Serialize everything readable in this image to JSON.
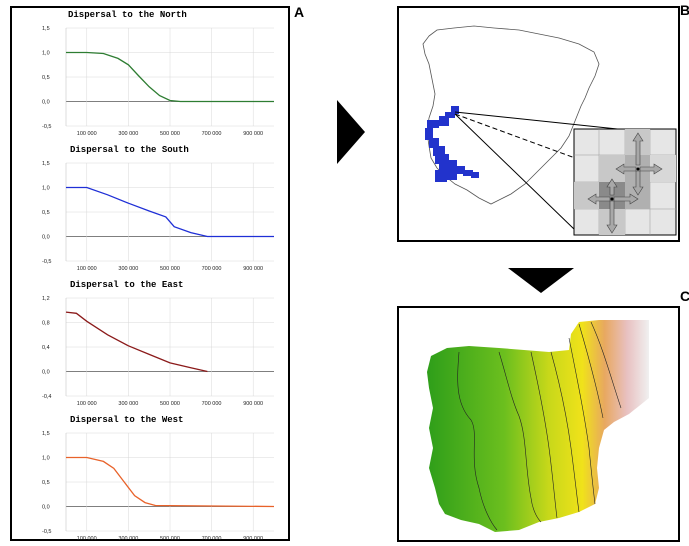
{
  "panels": {
    "a_label": "A",
    "b_label": "B",
    "c_label": "C"
  },
  "chart_data": [
    {
      "type": "line",
      "title": "Dispersal to the North",
      "color": "#2e7d32",
      "ylim": [
        -0.5,
        1.5
      ],
      "yticks": [
        "1,5",
        "1,0",
        "0,5",
        "0,0",
        "-0,5"
      ],
      "ytick_values": [
        1.5,
        1.0,
        0.5,
        0.0,
        -0.5
      ],
      "xlim": [
        0,
        1000000
      ],
      "xticks": [
        "100 000",
        "300 000",
        "500 000",
        "700 000",
        "900 000"
      ],
      "xtick_values": [
        100000,
        300000,
        500000,
        700000,
        900000
      ],
      "x": [
        0,
        100000,
        180000,
        250000,
        300000,
        350000,
        400000,
        450000,
        500000,
        550000,
        650000,
        1000000
      ],
      "y": [
        1.0,
        1.0,
        0.98,
        0.88,
        0.75,
        0.52,
        0.3,
        0.12,
        0.02,
        0.0,
        0.0,
        0.0
      ]
    },
    {
      "type": "line",
      "title": "Dispersal to the South",
      "color": "#1f2fd6",
      "ylim": [
        -0.5,
        1.5
      ],
      "yticks": [
        "1,5",
        "1,0",
        "0,5",
        "0,0",
        "-0,5"
      ],
      "ytick_values": [
        1.5,
        1.0,
        0.5,
        0.0,
        -0.5
      ],
      "xlim": [
        0,
        1000000
      ],
      "xticks": [
        "100 000",
        "300 000",
        "500 000",
        "700 000",
        "900 000"
      ],
      "xtick_values": [
        100000,
        300000,
        500000,
        700000,
        900000
      ],
      "x": [
        0,
        100000,
        200000,
        300000,
        400000,
        480000,
        520000,
        600000,
        680000,
        720000,
        1000000
      ],
      "y": [
        1.0,
        1.0,
        0.85,
        0.68,
        0.52,
        0.4,
        0.2,
        0.08,
        0.0,
        0.0,
        0.0
      ]
    },
    {
      "type": "line",
      "title": "Dispersal to the East",
      "color": "#8b1a1a",
      "ylim": [
        -0.4,
        1.2
      ],
      "yticks": [
        "1,2",
        "0,8",
        "0,4",
        "0,0",
        "-0,4"
      ],
      "ytick_values": [
        1.2,
        0.8,
        0.4,
        0.0,
        -0.4
      ],
      "xlim": [
        0,
        1000000
      ],
      "xticks": [
        "100 000",
        "300 000",
        "500 000",
        "700 000",
        "900 000"
      ],
      "xtick_values": [
        100000,
        300000,
        500000,
        700000,
        900000
      ],
      "x": [
        0,
        50000,
        100000,
        200000,
        300000,
        400000,
        500000,
        600000,
        680000
      ],
      "y": [
        0.97,
        0.95,
        0.82,
        0.6,
        0.42,
        0.28,
        0.14,
        0.06,
        0.0
      ]
    },
    {
      "type": "line",
      "title": "Dispersal to the West",
      "color": "#e8622a",
      "ylim": [
        -0.5,
        1.5
      ],
      "yticks": [
        "1,5",
        "1,0",
        "0,5",
        "0,0",
        "-0,5"
      ],
      "ytick_values": [
        1.5,
        1.0,
        0.5,
        0.0,
        -0.5
      ],
      "xlim": [
        0,
        1000000
      ],
      "xticks": [
        "100 000",
        "300 000",
        "500 000",
        "700 000",
        "900 000"
      ],
      "xtick_values": [
        100000,
        300000,
        500000,
        700000,
        900000
      ],
      "x": [
        0,
        100000,
        180000,
        230000,
        280000,
        330000,
        380000,
        430000,
        1000000
      ],
      "y": [
        1.0,
        1.0,
        0.92,
        0.78,
        0.5,
        0.22,
        0.08,
        0.02,
        0.0
      ]
    }
  ],
  "colors": {
    "frame": "#000000",
    "grid": "#d8d8d8",
    "distribution": "#2233cc",
    "grid_cell_dark": "#8a8a8a",
    "grid_cell_light": "#c8c8c8"
  }
}
